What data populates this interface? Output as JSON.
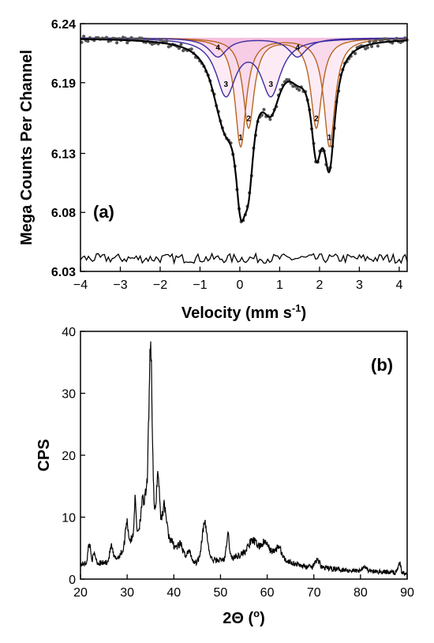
{
  "chart_data": [
    {
      "type": "scatter",
      "panel_label": "(a)",
      "xlabel": "Velocity (mm s",
      "xlabel_sup": "-1",
      "xlabel_end": ")",
      "ylabel": "Mega Counts Per Channel",
      "xlim": [
        -4,
        4.2
      ],
      "ylim": [
        6.03,
        6.24
      ],
      "xticks": [
        -4,
        -3,
        -2,
        -1,
        0,
        1,
        2,
        3,
        4
      ],
      "yticks": [
        6.03,
        6.08,
        6.13,
        6.19,
        6.24
      ],
      "ytick_labels": [
        "6.03",
        "6.08",
        "6.13",
        "6.19",
        "6.24"
      ],
      "baseline": 6.228,
      "components": [
        {
          "label": "1",
          "color": "#b8651e",
          "centers": [
            0.02,
            2.25
          ],
          "depth": 0.092,
          "hwhm": 0.17
        },
        {
          "label": "2",
          "color": "#b8651e",
          "centers": [
            0.22,
            1.92
          ],
          "depth": 0.076,
          "hwhm": 0.17
        },
        {
          "label": "3",
          "color": "#3a2ca0",
          "centers": [
            -0.35,
            0.78
          ],
          "depth": 0.047,
          "hwhm": 0.3
        },
        {
          "label": "4",
          "color": "#3a2ca0",
          "centers": [
            -0.55,
            1.45
          ],
          "depth": 0.016,
          "hwhm": 0.28
        }
      ],
      "residual_level": 6.041,
      "residual_amplitude": 0.004,
      "colors": {
        "data": "#555555",
        "fit": "#000000",
        "envelope": "#ee82c0"
      }
    },
    {
      "type": "line",
      "panel_label": "(b)",
      "xlabel": "2Θ (",
      "xlabel_sup": "o",
      "xlabel_end": ")",
      "ylabel": "CPS",
      "xlim": [
        20,
        90
      ],
      "ylim": [
        0,
        40
      ],
      "xticks": [
        20,
        30,
        40,
        50,
        60,
        70,
        80,
        90
      ],
      "yticks": [
        0,
        10,
        20,
        30,
        40
      ],
      "background": [
        [
          20,
          2.4
        ],
        [
          25,
          2.6
        ],
        [
          28,
          3.5
        ],
        [
          30,
          5.5
        ],
        [
          33,
          8.5
        ],
        [
          35,
          10
        ],
        [
          37,
          9
        ],
        [
          40,
          5.5
        ],
        [
          42,
          3.5
        ],
        [
          44,
          2.6
        ],
        [
          48,
          3
        ],
        [
          52,
          3.2
        ],
        [
          55,
          4.2
        ],
        [
          58,
          5
        ],
        [
          61,
          4.5
        ],
        [
          64,
          3
        ],
        [
          68,
          2
        ],
        [
          72,
          1.8
        ],
        [
          80,
          1.3
        ],
        [
          90,
          1.0
        ]
      ],
      "peaks": [
        {
          "x": 21.9,
          "h": 3.2,
          "w": 0.3
        },
        {
          "x": 23.0,
          "h": 1.5,
          "w": 0.3
        },
        {
          "x": 26.6,
          "h": 2.2,
          "w": 0.3
        },
        {
          "x": 29.9,
          "h": 4.0,
          "w": 0.3
        },
        {
          "x": 31.7,
          "h": 5.5,
          "w": 0.2
        },
        {
          "x": 33.2,
          "h": 3.5,
          "w": 0.3
        },
        {
          "x": 34.0,
          "h": 4.0,
          "w": 0.35
        },
        {
          "x": 35.0,
          "h": 28.5,
          "w": 0.35
        },
        {
          "x": 36.6,
          "h": 8.0,
          "w": 0.3
        },
        {
          "x": 38.0,
          "h": 4.0,
          "w": 0.4
        },
        {
          "x": 41.5,
          "h": 1.5,
          "w": 0.5
        },
        {
          "x": 43.3,
          "h": 1.5,
          "w": 0.5
        },
        {
          "x": 46.6,
          "h": 6.0,
          "w": 0.6
        },
        {
          "x": 51.6,
          "h": 4.0,
          "w": 0.3
        },
        {
          "x": 56.8,
          "h": 1.5,
          "w": 0.8
        },
        {
          "x": 59.5,
          "h": 1.2,
          "w": 0.6
        },
        {
          "x": 62.5,
          "h": 1.5,
          "w": 0.5
        },
        {
          "x": 70.8,
          "h": 1.2,
          "w": 0.5
        },
        {
          "x": 80.8,
          "h": 0.8,
          "w": 0.5
        },
        {
          "x": 88.3,
          "h": 1.8,
          "w": 0.25
        }
      ],
      "colors": {
        "line": "#000000"
      }
    }
  ]
}
